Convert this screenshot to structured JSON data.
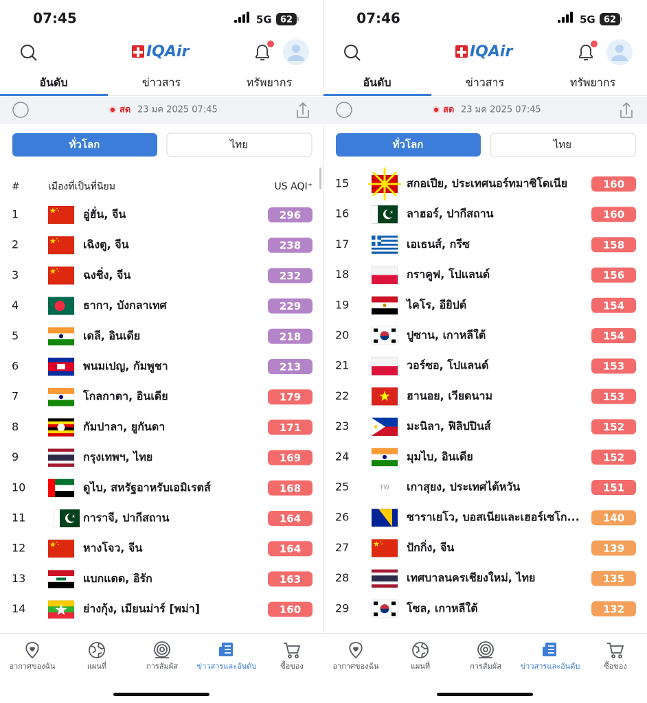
{
  "screens": [
    {
      "status": {
        "time": "07:45",
        "network": "5G",
        "battery": "62"
      },
      "logo": "IQAir",
      "tabs": [
        "อันดับ",
        "ข่าวสาร",
        "ทรัพยากร"
      ],
      "live": {
        "label": "สด",
        "date": "23 มค 2025 07:45"
      },
      "filters": [
        "ทั่วโลก",
        "ไทย"
      ],
      "table": {
        "headers": [
          "#",
          "เมืองที่เป็นที่นิยม",
          "US AQI⁺"
        ],
        "rows": [
          {
            "rank": 1,
            "flag": "cn",
            "city": "อู่ฮั่น, จีน",
            "aqi": 296,
            "color": "#b484c8"
          },
          {
            "rank": 2,
            "flag": "cn",
            "city": "เฉิงตู, จีน",
            "aqi": 238,
            "color": "#b484c8"
          },
          {
            "rank": 3,
            "flag": "cn",
            "city": "ฉงชิ่ง, จีน",
            "aqi": 232,
            "color": "#b484c8"
          },
          {
            "rank": 4,
            "flag": "bd",
            "city": "ธากา, บังกลาเทศ",
            "aqi": 229,
            "color": "#b484c8"
          },
          {
            "rank": 5,
            "flag": "in",
            "city": "เดลี, อินเดีย",
            "aqi": 218,
            "color": "#b484c8"
          },
          {
            "rank": 6,
            "flag": "kh",
            "city": "พนมเปญ, กัมพูชา",
            "aqi": 213,
            "color": "#b484c8"
          },
          {
            "rank": 7,
            "flag": "in",
            "city": "โกลกาตา, อินเดีย",
            "aqi": 179,
            "color": "#f36b6b"
          },
          {
            "rank": 8,
            "flag": "ug",
            "city": "กัมปาลา, ยูกันดา",
            "aqi": 171,
            "color": "#f36b6b"
          },
          {
            "rank": 9,
            "flag": "th",
            "city": "กรุงเทพฯ, ไทย",
            "aqi": 169,
            "color": "#f36b6b"
          },
          {
            "rank": 10,
            "flag": "ae",
            "city": "ดูไบ, สหรัฐอาหรับเอมิเรตส์",
            "aqi": 168,
            "color": "#f36b6b"
          },
          {
            "rank": 11,
            "flag": "pk",
            "city": "การาจี, ปากีสถาน",
            "aqi": 164,
            "color": "#f36b6b"
          },
          {
            "rank": 12,
            "flag": "cn",
            "city": "หางโจว, จีน",
            "aqi": 164,
            "color": "#f36b6b"
          },
          {
            "rank": 13,
            "flag": "iq",
            "city": "แบกแดด, อิรัก",
            "aqi": 163,
            "color": "#f36b6b"
          },
          {
            "rank": 14,
            "flag": "mm",
            "city": "ย่างกุ้ง, เมียนม่าร์ [พม่า]",
            "aqi": 160,
            "color": "#f36b6b"
          }
        ]
      },
      "nav": [
        "อากาศของฉัน",
        "แผนที่",
        "การสัมผัส",
        "ข่าวสารและอันดับ",
        "ซื้อของ"
      ]
    },
    {
      "status": {
        "time": "07:46",
        "network": "5G",
        "battery": "62"
      },
      "logo": "IQAir",
      "tabs": [
        "อันดับ",
        "ข่าวสาร",
        "ทรัพยากร"
      ],
      "live": {
        "label": "สด",
        "date": "23 มค 2025 07:45"
      },
      "filters": [
        "ทั่วโลก",
        "ไทย"
      ],
      "table": {
        "rows": [
          {
            "rank": 15,
            "flag": "mk",
            "city": "สกอเปีย, ประเทศนอร์ทมาซิโดเนีย",
            "aqi": 160,
            "color": "#f36b6b"
          },
          {
            "rank": 16,
            "flag": "pk",
            "city": "ลาฮอร์, ปากีสถาน",
            "aqi": 160,
            "color": "#f36b6b"
          },
          {
            "rank": 17,
            "flag": "gr",
            "city": "เอเธนส์, กรีซ",
            "aqi": 158,
            "color": "#f36b6b"
          },
          {
            "rank": 18,
            "flag": "pl",
            "city": "กราคูฟ, โปแลนด์",
            "aqi": 156,
            "color": "#f36b6b"
          },
          {
            "rank": 19,
            "flag": "eg",
            "city": "ไคโร, อียิปต์",
            "aqi": 154,
            "color": "#f36b6b"
          },
          {
            "rank": 20,
            "flag": "kr",
            "city": "ปูซาน, เกาหลีใต้",
            "aqi": 154,
            "color": "#f36b6b"
          },
          {
            "rank": 21,
            "flag": "pl",
            "city": "วอร์ซอ, โปแลนด์",
            "aqi": 153,
            "color": "#f36b6b"
          },
          {
            "rank": 22,
            "flag": "vn",
            "city": "ฮานอย, เวียดนาม",
            "aqi": 153,
            "color": "#f36b6b"
          },
          {
            "rank": 23,
            "flag": "ph",
            "city": "มะนิลา, ฟิลิปปินส์",
            "aqi": 152,
            "color": "#f36b6b"
          },
          {
            "rank": 24,
            "flag": "in",
            "city": "มุมไบ, อินเดีย",
            "aqi": 152,
            "color": "#f36b6b"
          },
          {
            "rank": 25,
            "flag_text": "TW",
            "city": "เกาสุยง, ประเทศไต้หวัน",
            "aqi": 151,
            "color": "#f36b6b"
          },
          {
            "rank": 26,
            "flag": "ba",
            "city": "ซาราเยโว, บอสเนียและเฮอร์เซโก...",
            "aqi": 140,
            "color": "#f5a05a"
          },
          {
            "rank": 27,
            "flag": "cn",
            "city": "ปักกิ่ง, จีน",
            "aqi": 139,
            "color": "#f5a05a"
          },
          {
            "rank": 28,
            "flag": "th",
            "city": "เทศบาลนครเชียงใหม่, ไทย",
            "aqi": 135,
            "color": "#f5a05a"
          },
          {
            "rank": 29,
            "flag": "kr",
            "city": "โซล, เกาหลีใต้",
            "aqi": 132,
            "color": "#f5a05a"
          }
        ]
      },
      "nav": [
        "อากาศของฉัน",
        "แผนที่",
        "การสัมผัส",
        "ข่าวสารและอันดับ",
        "ซื้อของ"
      ]
    }
  ]
}
